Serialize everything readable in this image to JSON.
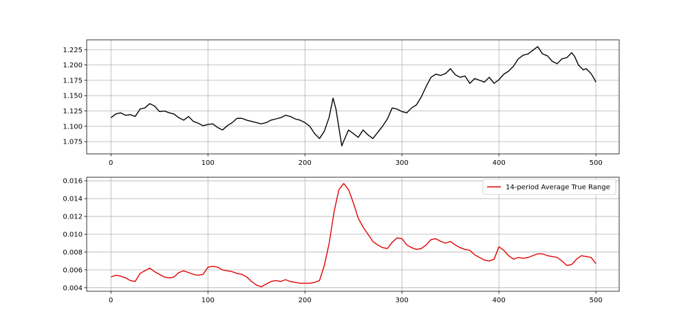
{
  "chart_data": [
    {
      "type": "line",
      "panel": "top",
      "title": "",
      "xlabel": "",
      "ylabel": "",
      "grid": true,
      "xlim": [
        -25,
        524
      ],
      "ylim": [
        1.055,
        1.241
      ],
      "x_ticks": [
        0,
        100,
        200,
        300,
        400,
        500
      ],
      "y_ticks": [
        1.075,
        1.1,
        1.125,
        1.15,
        1.175,
        1.2,
        1.225
      ],
      "y_tick_labels": [
        "1.075",
        "1.100",
        "1.125",
        "1.150",
        "1.175",
        "1.200",
        "1.225"
      ],
      "series": [
        {
          "color": "#000000",
          "points": [
            [
              0,
              1.114
            ],
            [
              5,
              1.12
            ],
            [
              10,
              1.122
            ],
            [
              15,
              1.118
            ],
            [
              20,
              1.119
            ],
            [
              25,
              1.116
            ],
            [
              30,
              1.128
            ],
            [
              35,
              1.13
            ],
            [
              40,
              1.137
            ],
            [
              45,
              1.133
            ],
            [
              50,
              1.124
            ],
            [
              55,
              1.125
            ],
            [
              60,
              1.122
            ],
            [
              65,
              1.12
            ],
            [
              70,
              1.114
            ],
            [
              75,
              1.11
            ],
            [
              80,
              1.116
            ],
            [
              85,
              1.108
            ],
            [
              90,
              1.105
            ],
            [
              95,
              1.101
            ],
            [
              100,
              1.103
            ],
            [
              105,
              1.104
            ],
            [
              110,
              1.098
            ],
            [
              115,
              1.094
            ],
            [
              120,
              1.101
            ],
            [
              125,
              1.106
            ],
            [
              130,
              1.113
            ],
            [
              135,
              1.113
            ],
            [
              140,
              1.11
            ],
            [
              145,
              1.108
            ],
            [
              150,
              1.106
            ],
            [
              155,
              1.104
            ],
            [
              160,
              1.106
            ],
            [
              165,
              1.11
            ],
            [
              170,
              1.112
            ],
            [
              175,
              1.114
            ],
            [
              180,
              1.118
            ],
            [
              185,
              1.116
            ],
            [
              190,
              1.112
            ],
            [
              195,
              1.11
            ],
            [
              200,
              1.106
            ],
            [
              205,
              1.1
            ],
            [
              210,
              1.088
            ],
            [
              215,
              1.08
            ],
            [
              220,
              1.092
            ],
            [
              225,
              1.115
            ],
            [
              229,
              1.146
            ],
            [
              232,
              1.128
            ],
            [
              235,
              1.098
            ],
            [
              238,
              1.068
            ],
            [
              240,
              1.076
            ],
            [
              245,
              1.094
            ],
            [
              250,
              1.088
            ],
            [
              255,
              1.082
            ],
            [
              260,
              1.094
            ],
            [
              265,
              1.086
            ],
            [
              270,
              1.08
            ],
            [
              275,
              1.09
            ],
            [
              280,
              1.1
            ],
            [
              285,
              1.112
            ],
            [
              290,
              1.13
            ],
            [
              295,
              1.128
            ],
            [
              300,
              1.124
            ],
            [
              305,
              1.122
            ],
            [
              310,
              1.13
            ],
            [
              315,
              1.135
            ],
            [
              320,
              1.148
            ],
            [
              325,
              1.165
            ],
            [
              330,
              1.18
            ],
            [
              335,
              1.185
            ],
            [
              340,
              1.183
            ],
            [
              345,
              1.186
            ],
            [
              350,
              1.194
            ],
            [
              355,
              1.184
            ],
            [
              360,
              1.18
            ],
            [
              365,
              1.182
            ],
            [
              370,
              1.17
            ],
            [
              375,
              1.178
            ],
            [
              380,
              1.175
            ],
            [
              385,
              1.172
            ],
            [
              390,
              1.18
            ],
            [
              395,
              1.17
            ],
            [
              400,
              1.176
            ],
            [
              405,
              1.185
            ],
            [
              410,
              1.19
            ],
            [
              415,
              1.198
            ],
            [
              420,
              1.21
            ],
            [
              425,
              1.216
            ],
            [
              430,
              1.218
            ],
            [
              435,
              1.224
            ],
            [
              440,
              1.23
            ],
            [
              445,
              1.218
            ],
            [
              450,
              1.215
            ],
            [
              455,
              1.206
            ],
            [
              460,
              1.202
            ],
            [
              465,
              1.21
            ],
            [
              470,
              1.212
            ],
            [
              475,
              1.22
            ],
            [
              478,
              1.214
            ],
            [
              482,
              1.2
            ],
            [
              487,
              1.192
            ],
            [
              490,
              1.194
            ],
            [
              495,
              1.186
            ],
            [
              498,
              1.178
            ],
            [
              500,
              1.172
            ]
          ]
        }
      ]
    },
    {
      "type": "line",
      "panel": "bottom",
      "title": "",
      "xlabel": "",
      "ylabel": "",
      "grid": true,
      "legend_position": "top-right",
      "xlim": [
        -25,
        524
      ],
      "ylim": [
        0.0036,
        0.0164
      ],
      "x_ticks": [
        0,
        100,
        200,
        300,
        400,
        500
      ],
      "y_ticks": [
        0.004,
        0.006,
        0.008,
        0.01,
        0.012,
        0.014,
        0.016
      ],
      "y_tick_labels": [
        "0.004",
        "0.006",
        "0.008",
        "0.010",
        "0.012",
        "0.014",
        "0.016"
      ],
      "series": [
        {
          "name": "14-period Average True Range",
          "color": "#e00000",
          "points": [
            [
              0,
              0.0052
            ],
            [
              5,
              0.0054
            ],
            [
              10,
              0.0053
            ],
            [
              15,
              0.0051
            ],
            [
              20,
              0.0048
            ],
            [
              25,
              0.0047
            ],
            [
              30,
              0.0056
            ],
            [
              35,
              0.0059
            ],
            [
              40,
              0.0062
            ],
            [
              45,
              0.0058
            ],
            [
              50,
              0.0055
            ],
            [
              55,
              0.0052
            ],
            [
              60,
              0.0051
            ],
            [
              65,
              0.0052
            ],
            [
              70,
              0.0057
            ],
            [
              75,
              0.0059
            ],
            [
              80,
              0.0057
            ],
            [
              85,
              0.0055
            ],
            [
              90,
              0.0054
            ],
            [
              95,
              0.0055
            ],
            [
              100,
              0.0063
            ],
            [
              105,
              0.0064
            ],
            [
              110,
              0.0063
            ],
            [
              115,
              0.006
            ],
            [
              120,
              0.0059
            ],
            [
              125,
              0.0058
            ],
            [
              130,
              0.0056
            ],
            [
              135,
              0.0055
            ],
            [
              140,
              0.0052
            ],
            [
              145,
              0.0047
            ],
            [
              150,
              0.0043
            ],
            [
              155,
              0.0041
            ],
            [
              160,
              0.0044
            ],
            [
              165,
              0.0047
            ],
            [
              170,
              0.0048
            ],
            [
              175,
              0.0047
            ],
            [
              180,
              0.0049
            ],
            [
              185,
              0.0047
            ],
            [
              190,
              0.0046
            ],
            [
              195,
              0.0045
            ],
            [
              200,
              0.0045
            ],
            [
              205,
              0.0045
            ],
            [
              210,
              0.0046
            ],
            [
              215,
              0.0048
            ],
            [
              220,
              0.0065
            ],
            [
              225,
              0.009
            ],
            [
              230,
              0.0125
            ],
            [
              235,
              0.015
            ],
            [
              240,
              0.0157
            ],
            [
              245,
              0.015
            ],
            [
              250,
              0.0135
            ],
            [
              255,
              0.0118
            ],
            [
              260,
              0.0108
            ],
            [
              265,
              0.01
            ],
            [
              270,
              0.0092
            ],
            [
              275,
              0.0088
            ],
            [
              280,
              0.0085
            ],
            [
              285,
              0.0084
            ],
            [
              290,
              0.0091
            ],
            [
              295,
              0.0096
            ],
            [
              300,
              0.0095
            ],
            [
              305,
              0.0088
            ],
            [
              310,
              0.0085
            ],
            [
              315,
              0.0083
            ],
            [
              320,
              0.0084
            ],
            [
              325,
              0.0088
            ],
            [
              330,
              0.0094
            ],
            [
              335,
              0.0095
            ],
            [
              340,
              0.0092
            ],
            [
              345,
              0.009
            ],
            [
              350,
              0.0092
            ],
            [
              355,
              0.0088
            ],
            [
              360,
              0.0085
            ],
            [
              365,
              0.0083
            ],
            [
              370,
              0.0082
            ],
            [
              375,
              0.0077
            ],
            [
              380,
              0.0074
            ],
            [
              385,
              0.0071
            ],
            [
              390,
              0.007
            ],
            [
              395,
              0.0072
            ],
            [
              400,
              0.0086
            ],
            [
              405,
              0.0082
            ],
            [
              410,
              0.0076
            ],
            [
              415,
              0.0072
            ],
            [
              420,
              0.0074
            ],
            [
              425,
              0.0073
            ],
            [
              430,
              0.0074
            ],
            [
              435,
              0.0076
            ],
            [
              440,
              0.0078
            ],
            [
              445,
              0.0078
            ],
            [
              450,
              0.0076
            ],
            [
              455,
              0.0075
            ],
            [
              460,
              0.0074
            ],
            [
              465,
              0.007
            ],
            [
              470,
              0.0065
            ],
            [
              475,
              0.0066
            ],
            [
              480,
              0.0072
            ],
            [
              485,
              0.0076
            ],
            [
              490,
              0.0075
            ],
            [
              495,
              0.0074
            ],
            [
              500,
              0.0067
            ]
          ]
        }
      ]
    }
  ]
}
